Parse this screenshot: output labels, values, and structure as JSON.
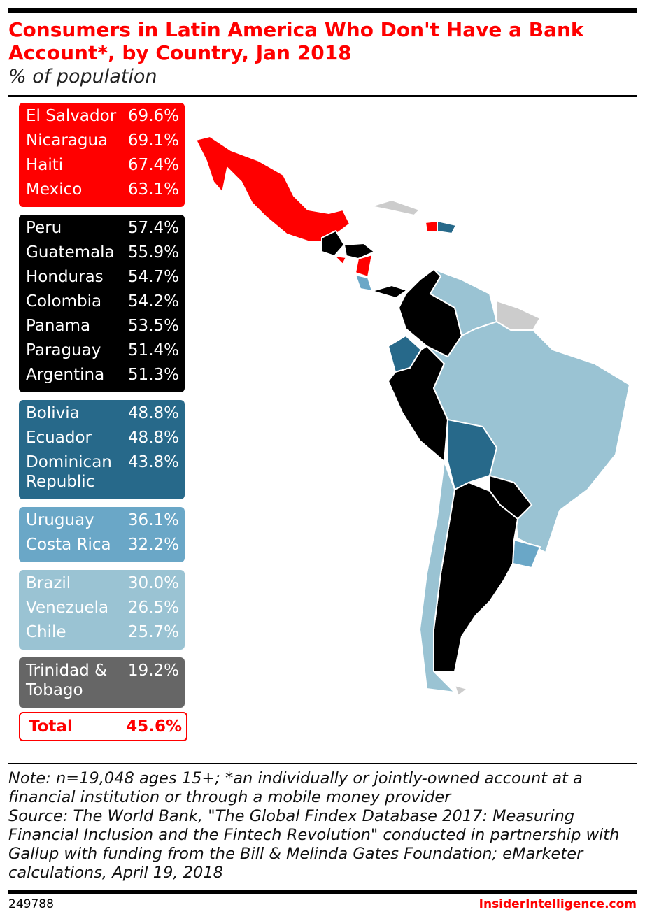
{
  "header": {
    "title": "Consumers in Latin America Who Don't Have a Bank Account*, by Country, Jan 2018",
    "subtitle": "% of population"
  },
  "groups": [
    {
      "color": "#ff0000",
      "text_color": "#ffffff",
      "rows": [
        {
          "country": "El Salvador",
          "value": "69.6%"
        },
        {
          "country": "Nicaragua",
          "value": "69.1%"
        },
        {
          "country": "Haiti",
          "value": "67.4%"
        },
        {
          "country": "Mexico",
          "value": "63.1%"
        }
      ]
    },
    {
      "color": "#000000",
      "text_color": "#ffffff",
      "rows": [
        {
          "country": "Peru",
          "value": "57.4%"
        },
        {
          "country": "Guatemala",
          "value": "55.9%"
        },
        {
          "country": "Honduras",
          "value": "54.7%"
        },
        {
          "country": "Colombia",
          "value": "54.2%"
        },
        {
          "country": "Panama",
          "value": "53.5%"
        },
        {
          "country": "Paraguay",
          "value": "51.4%"
        },
        {
          "country": "Argentina",
          "value": "51.3%"
        }
      ]
    },
    {
      "color": "#27698a",
      "text_color": "#ffffff",
      "rows": [
        {
          "country": "Bolivia",
          "value": "48.8%"
        },
        {
          "country": "Ecuador",
          "value": "48.8%"
        },
        {
          "country": "Dominican Republic",
          "value": "43.8%"
        }
      ]
    },
    {
      "color": "#6aa7c7",
      "text_color": "#ffffff",
      "rows": [
        {
          "country": "Uruguay",
          "value": "36.1%"
        },
        {
          "country": "Costa Rica",
          "value": "32.2%"
        }
      ]
    },
    {
      "color": "#9ac3d3",
      "text_color": "#ffffff",
      "rows": [
        {
          "country": "Brazil",
          "value": "30.0%"
        },
        {
          "country": "Venezuela",
          "value": "26.5%"
        },
        {
          "country": "Chile",
          "value": "25.7%"
        }
      ]
    },
    {
      "color": "#666666",
      "text_color": "#ffffff",
      "rows": [
        {
          "country": "Trinidad & Tobago",
          "value": "19.2%"
        }
      ]
    }
  ],
  "total": {
    "label": "Total",
    "value": "45.6%"
  },
  "note": "Note: n=19,048 ages 15+; *an individually or jointly-owned account at a financial institution or through a mobile money provider",
  "source": "Source: The World Bank, \"The Global Findex Database 2017: Measuring Financial Inclusion and the Fintech Revolution\" conducted in partnership with Gallup with funding from the Bill & Melinda Gates Foundation; eMarketer calculations, April 19, 2018",
  "footer": {
    "id": "249788",
    "brand": "InsiderIntelligence.com"
  }
}
